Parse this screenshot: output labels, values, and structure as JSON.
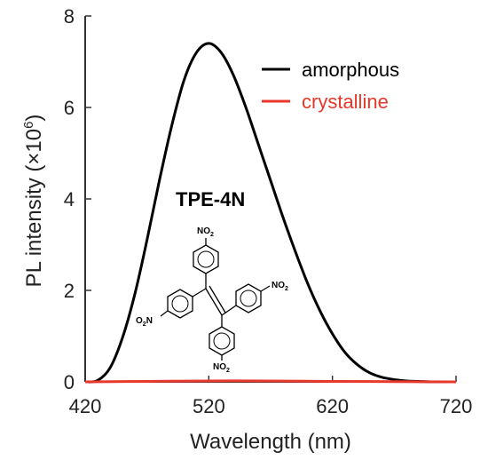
{
  "chart_data": {
    "type": "line",
    "xlabel": "Wavelength (nm)",
    "ylabel_prefix": "PL intensity (×10",
    "ylabel_exp": "6",
    "ylabel_suffix": ")",
    "xlim": [
      420,
      720
    ],
    "ylim": [
      0,
      8
    ],
    "x_ticks": [
      420,
      520,
      620,
      720
    ],
    "y_ticks": [
      0,
      2,
      4,
      6,
      8
    ],
    "grid": false,
    "legend_position": "top-right",
    "series": [
      {
        "name": "amorphous",
        "color": "#000000",
        "x": [
          420,
          430,
          440,
          450,
          460,
          470,
          480,
          490,
          500,
          510,
          520,
          530,
          540,
          550,
          560,
          570,
          580,
          590,
          600,
          610,
          620,
          630,
          640,
          650,
          660,
          670,
          680,
          690,
          700,
          710,
          720
        ],
        "y": [
          0.0,
          0.03,
          0.3,
          0.95,
          1.9,
          3.1,
          4.4,
          5.6,
          6.6,
          7.2,
          7.4,
          7.2,
          6.7,
          6.0,
          5.2,
          4.4,
          3.6,
          2.85,
          2.15,
          1.55,
          1.05,
          0.65,
          0.38,
          0.2,
          0.1,
          0.05,
          0.02,
          0.01,
          0.0,
          0.0,
          0.0
        ]
      },
      {
        "name": "crystalline",
        "color": "#e8372b",
        "x": [
          420,
          470,
          520,
          570,
          620,
          670,
          720
        ],
        "y": [
          0.0,
          0.01,
          0.02,
          0.02,
          0.01,
          0.005,
          0.0
        ]
      }
    ]
  },
  "annotation": {
    "compound": "TPE-4N",
    "no2_label": "NO",
    "no2_sub": "2",
    "o2n_prefix": "O",
    "o2n_sub": "2",
    "o2n_suffix": "N"
  },
  "colors": {
    "axis": "#333333",
    "amorphous": "#000000",
    "crystalline": "#e8372b"
  }
}
